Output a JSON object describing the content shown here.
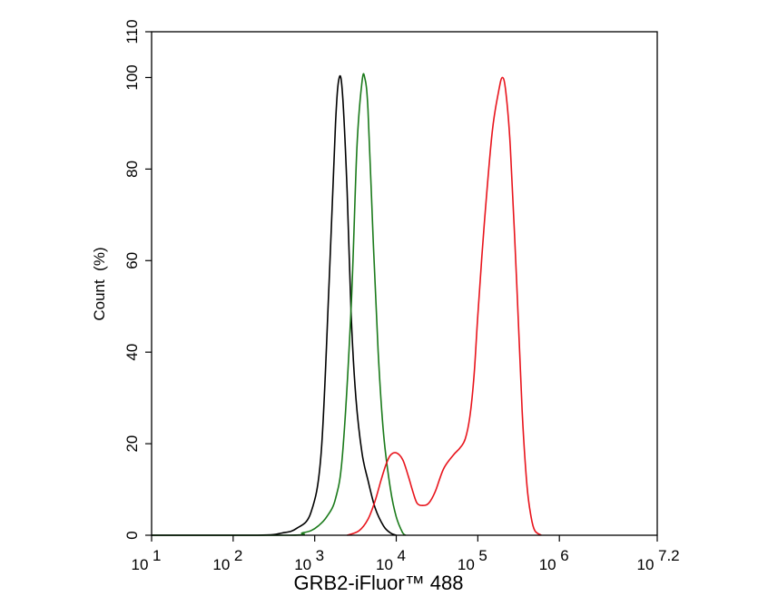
{
  "chart_data": {
    "type": "line",
    "title": "",
    "xlabel": "GRB2-iFluor™ 488",
    "ylabel": "Count  (%)",
    "x_scale": "log10",
    "xlim": [
      10,
      15848932
    ],
    "ylim": [
      0,
      110
    ],
    "grid": false,
    "x_ticks": [
      {
        "value": 10,
        "base": "10",
        "exp": "1"
      },
      {
        "value": 100,
        "base": "10",
        "exp": "2"
      },
      {
        "value": 1000,
        "base": "10",
        "exp": "3"
      },
      {
        "value": 10000,
        "base": "10",
        "exp": "4"
      },
      {
        "value": 100000,
        "base": "10",
        "exp": "5"
      },
      {
        "value": 1000000,
        "base": "10",
        "exp": "6"
      },
      {
        "value": 15848932,
        "base": "10",
        "exp": "7.2"
      }
    ],
    "y_ticks": [
      "0",
      "20",
      "40",
      "60",
      "80",
      "100",
      "110"
    ],
    "series": [
      {
        "color": "#000000",
        "x": [
          10,
          200,
          400,
          600,
          900,
          1200,
          1500,
          1800,
          2000,
          2200,
          2500,
          2800,
          3200,
          3800,
          4500,
          5500,
          7000,
          8500,
          10000
        ],
        "y": [
          0,
          0,
          0.5,
          1.5,
          5,
          18,
          55,
          90,
          100,
          96,
          75,
          48,
          30,
          18,
          12,
          6,
          2,
          0.5,
          0
        ]
      },
      {
        "color": "#1a7a1a",
        "x": [
          10,
          500,
          700,
          900,
          1100,
          1400,
          1800,
          2200,
          2800,
          3300,
          3800,
          4100,
          4500,
          5200,
          6000,
          7000,
          8500,
          10000,
          12000,
          13000
        ],
        "y": [
          0,
          0,
          0.5,
          1,
          2,
          4,
          8,
          18,
          50,
          85,
          99,
          100,
          93,
          65,
          40,
          22,
          10,
          4,
          0.5,
          0
        ]
      },
      {
        "color": "#e8141c",
        "x": [
          2500,
          3500,
          4500,
          5500,
          6500,
          7500,
          8500,
          10000,
          12000,
          14000,
          16000,
          18000,
          21000,
          25000,
          30000,
          38000,
          50000,
          60000,
          70000,
          80000,
          90000,
          100000,
          120000,
          150000,
          180000,
          200000,
          220000,
          250000,
          300000,
          350000,
          400000,
          450000,
          500000,
          600000
        ],
        "y": [
          0,
          1,
          3.5,
          7.5,
          12,
          15.5,
          17.5,
          18,
          16.5,
          13,
          9.5,
          7,
          6.5,
          7,
          9.5,
          14.5,
          17.5,
          19,
          21,
          26,
          35,
          48,
          68,
          88,
          97,
          100,
          97,
          85,
          55,
          27,
          11,
          4,
          1,
          0
        ]
      }
    ]
  }
}
